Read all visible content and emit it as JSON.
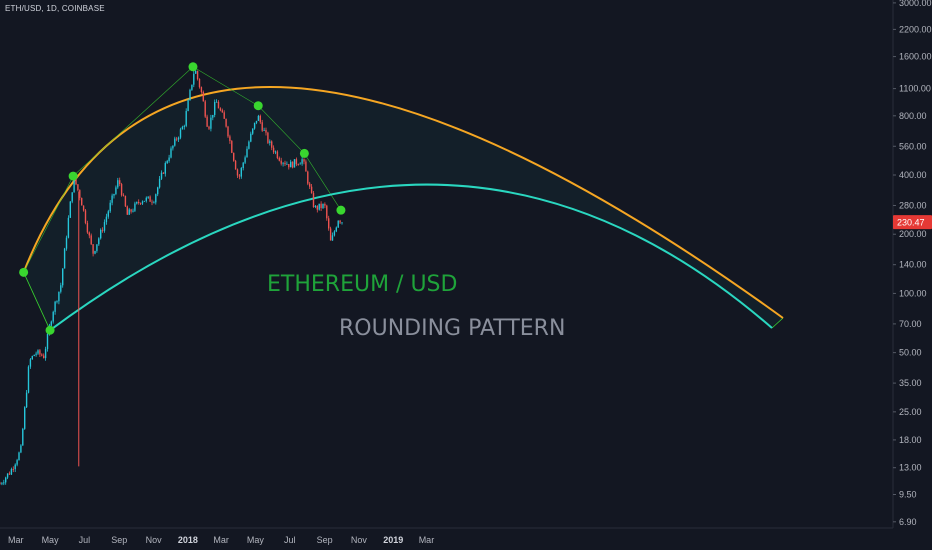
{
  "chart": {
    "symbol_label": "ETH/USD, 1D, COINBASE",
    "last_price": "230.47",
    "annotation_title": "ETHEREUM / USD",
    "annotation_subtitle": "ROUNDING PATTERN",
    "colors": {
      "background": "#131722",
      "up_candle": "#26c6da",
      "down_candle": "#ef5350",
      "upper_arc": "#f5a623",
      "lower_arc": "#2ad7c0",
      "pivot": "#39d62f",
      "title_color": "#1fa33a",
      "subtitle_color": "#8a8f9c",
      "price_badge": "#e53935"
    }
  },
  "chart_data": {
    "type": "candlestick",
    "title": "",
    "xlabel": "",
    "ylabel": "",
    "y_scale": "log",
    "y_ticks": [
      "3000.00",
      "2200.00",
      "1600.00",
      "1100.00",
      "800.00",
      "560.00",
      "400.00",
      "280.00",
      "200.00",
      "140.00",
      "100.00",
      "70.00",
      "50.00",
      "35.00",
      "25.00",
      "18.00",
      "13.00",
      "9.50",
      "6.90"
    ],
    "x_ticks": [
      "Mar",
      "May",
      "Jul",
      "Sep",
      "Nov",
      "2018",
      "Mar",
      "May",
      "Jul",
      "Sep",
      "Nov",
      "2019",
      "Mar"
    ],
    "x_ticks_bold": [
      "2018",
      "2019"
    ],
    "ylim": [
      6.0,
      3300
    ],
    "price_path": [
      {
        "date": "2017-02-01",
        "price": 10.8
      },
      {
        "date": "2017-02-20",
        "price": 12.5
      },
      {
        "date": "2017-03-10",
        "price": 16
      },
      {
        "date": "2017-03-25",
        "price": 45
      },
      {
        "date": "2017-04-05",
        "price": 50
      },
      {
        "date": "2017-04-20",
        "price": 48
      },
      {
        "date": "2017-05-05",
        "price": 80
      },
      {
        "date": "2017-05-20",
        "price": 110
      },
      {
        "date": "2017-06-01",
        "price": 220
      },
      {
        "date": "2017-06-12",
        "price": 390
      },
      {
        "date": "2017-06-25",
        "price": 300
      },
      {
        "date": "2017-07-16",
        "price": 160
      },
      {
        "date": "2017-08-01",
        "price": 210
      },
      {
        "date": "2017-08-31",
        "price": 380
      },
      {
        "date": "2017-09-15",
        "price": 250
      },
      {
        "date": "2017-10-10",
        "price": 300
      },
      {
        "date": "2017-11-01",
        "price": 300
      },
      {
        "date": "2017-11-25",
        "price": 480
      },
      {
        "date": "2017-12-10",
        "price": 600
      },
      {
        "date": "2017-12-25",
        "price": 720
      },
      {
        "date": "2018-01-13",
        "price": 1400
      },
      {
        "date": "2018-01-25",
        "price": 1050
      },
      {
        "date": "2018-02-06",
        "price": 690
      },
      {
        "date": "2018-02-20",
        "price": 950
      },
      {
        "date": "2018-03-10",
        "price": 720
      },
      {
        "date": "2018-04-01",
        "price": 380
      },
      {
        "date": "2018-04-20",
        "price": 600
      },
      {
        "date": "2018-05-05",
        "price": 800
      },
      {
        "date": "2018-05-25",
        "price": 580
      },
      {
        "date": "2018-06-15",
        "price": 480
      },
      {
        "date": "2018-07-01",
        "price": 450
      },
      {
        "date": "2018-07-24",
        "price": 480
      },
      {
        "date": "2018-08-14",
        "price": 270
      },
      {
        "date": "2018-09-01",
        "price": 280
      },
      {
        "date": "2018-09-12",
        "price": 180
      },
      {
        "date": "2018-09-25",
        "price": 240
      },
      {
        "date": "2018-10-05",
        "price": 230
      }
    ],
    "annotations": {
      "upper_arc_pivots": [
        {
          "date": "2017-03-15",
          "price": 128
        },
        {
          "date": "2017-06-11",
          "price": 395
        },
        {
          "date": "2018-01-10",
          "price": 1420
        },
        {
          "date": "2018-05-06",
          "price": 900
        },
        {
          "date": "2018-07-27",
          "price": 515
        },
        {
          "date": "2018-09-30",
          "price": 265
        }
      ],
      "lower_arc_pivot": {
        "date": "2017-05-01",
        "price": 65
      }
    }
  }
}
